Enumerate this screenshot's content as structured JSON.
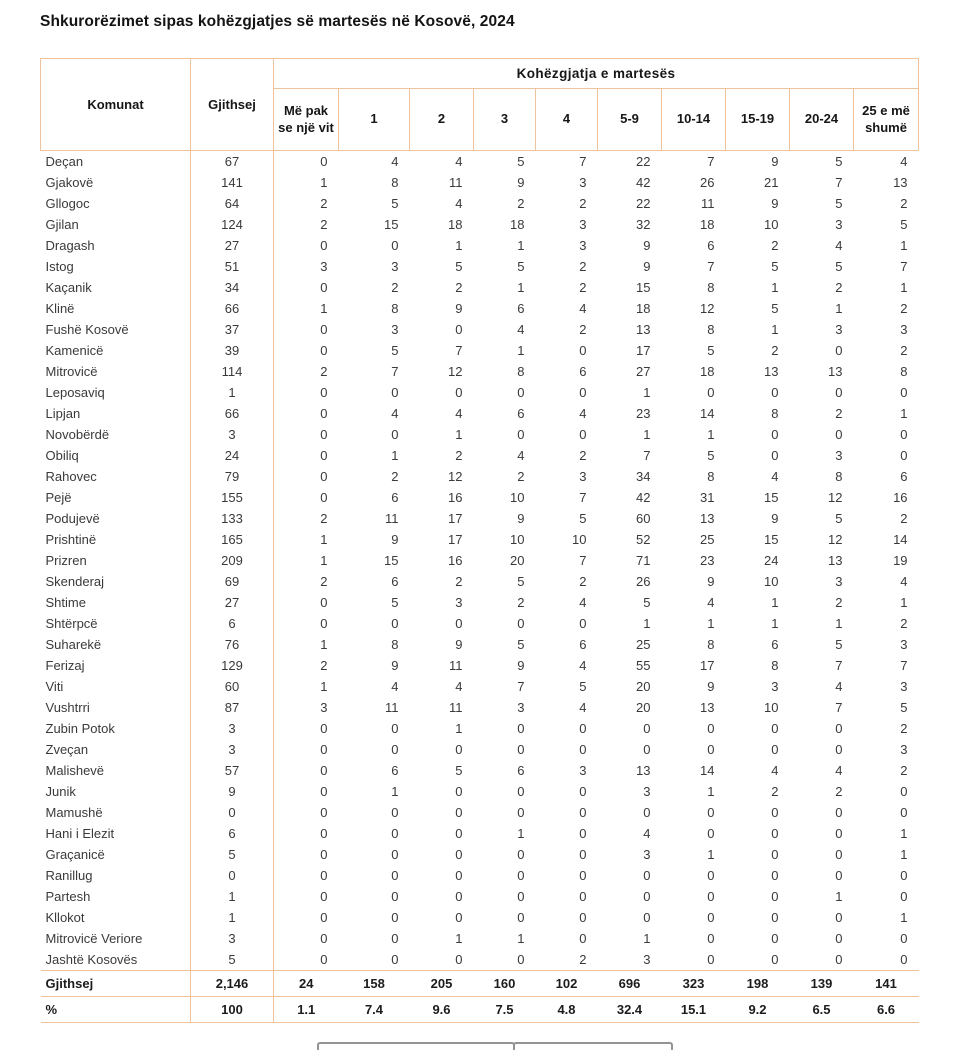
{
  "title": "Shkurorëzimet sipas kohëzgjatjes së martesës në Kosovë, 2024",
  "colors": {
    "table_border": "#f1c39c",
    "header_text": "#161616",
    "body_text": "#3a3a3a"
  },
  "table": {
    "col_komunat": "Komunat",
    "col_gjithsej": "Gjithsej",
    "group_header": "Kohëzgjatja e martesës",
    "duration_columns": [
      "Më pak se një vit",
      "1",
      "2",
      "3",
      "4",
      "5-9",
      "10-14",
      "15-19",
      "20-24",
      "25 e më shumë"
    ],
    "rows": [
      {
        "name": "Deçan",
        "total": "67",
        "values": [
          "0",
          "4",
          "4",
          "5",
          "7",
          "22",
          "7",
          "9",
          "5",
          "4"
        ]
      },
      {
        "name": "Gjakovë",
        "total": "141",
        "values": [
          "1",
          "8",
          "11",
          "9",
          "3",
          "42",
          "26",
          "21",
          "7",
          "13"
        ]
      },
      {
        "name": "Gllogoc",
        "total": "64",
        "values": [
          "2",
          "5",
          "4",
          "2",
          "2",
          "22",
          "11",
          "9",
          "5",
          "2"
        ]
      },
      {
        "name": "Gjilan",
        "total": "124",
        "values": [
          "2",
          "15",
          "18",
          "18",
          "3",
          "32",
          "18",
          "10",
          "3",
          "5"
        ]
      },
      {
        "name": "Dragash",
        "total": "27",
        "values": [
          "0",
          "0",
          "1",
          "1",
          "3",
          "9",
          "6",
          "2",
          "4",
          "1"
        ]
      },
      {
        "name": "Istog",
        "total": "51",
        "values": [
          "3",
          "3",
          "5",
          "5",
          "2",
          "9",
          "7",
          "5",
          "5",
          "7"
        ]
      },
      {
        "name": "Kaçanik",
        "total": "34",
        "values": [
          "0",
          "2",
          "2",
          "1",
          "2",
          "15",
          "8",
          "1",
          "2",
          "1"
        ]
      },
      {
        "name": "Klinë",
        "total": "66",
        "values": [
          "1",
          "8",
          "9",
          "6",
          "4",
          "18",
          "12",
          "5",
          "1",
          "2"
        ]
      },
      {
        "name": "Fushë Kosovë",
        "total": "37",
        "values": [
          "0",
          "3",
          "0",
          "4",
          "2",
          "13",
          "8",
          "1",
          "3",
          "3"
        ]
      },
      {
        "name": "Kamenicë",
        "total": "39",
        "values": [
          "0",
          "5",
          "7",
          "1",
          "0",
          "17",
          "5",
          "2",
          "0",
          "2"
        ]
      },
      {
        "name": "Mitrovicë",
        "total": "114",
        "values": [
          "2",
          "7",
          "12",
          "8",
          "6",
          "27",
          "18",
          "13",
          "13",
          "8"
        ]
      },
      {
        "name": "Leposaviq",
        "total": "1",
        "values": [
          "0",
          "0",
          "0",
          "0",
          "0",
          "1",
          "0",
          "0",
          "0",
          "0"
        ]
      },
      {
        "name": "Lipjan",
        "total": "66",
        "values": [
          "0",
          "4",
          "4",
          "6",
          "4",
          "23",
          "14",
          "8",
          "2",
          "1"
        ]
      },
      {
        "name": "Novobërdë",
        "total": "3",
        "values": [
          "0",
          "0",
          "1",
          "0",
          "0",
          "1",
          "1",
          "0",
          "0",
          "0"
        ]
      },
      {
        "name": "Obiliq",
        "total": "24",
        "values": [
          "0",
          "1",
          "2",
          "4",
          "2",
          "7",
          "5",
          "0",
          "3",
          "0"
        ]
      },
      {
        "name": "Rahovec",
        "total": "79",
        "values": [
          "0",
          "2",
          "12",
          "2",
          "3",
          "34",
          "8",
          "4",
          "8",
          "6"
        ]
      },
      {
        "name": "Pejë",
        "total": "155",
        "values": [
          "0",
          "6",
          "16",
          "10",
          "7",
          "42",
          "31",
          "15",
          "12",
          "16"
        ]
      },
      {
        "name": "Podujevë",
        "total": "133",
        "values": [
          "2",
          "11",
          "17",
          "9",
          "5",
          "60",
          "13",
          "9",
          "5",
          "2"
        ]
      },
      {
        "name": "Prishtinë",
        "total": "165",
        "values": [
          "1",
          "9",
          "17",
          "10",
          "10",
          "52",
          "25",
          "15",
          "12",
          "14"
        ]
      },
      {
        "name": "Prizren",
        "total": "209",
        "values": [
          "1",
          "15",
          "16",
          "20",
          "7",
          "71",
          "23",
          "24",
          "13",
          "19"
        ]
      },
      {
        "name": "Skenderaj",
        "total": "69",
        "values": [
          "2",
          "6",
          "2",
          "5",
          "2",
          "26",
          "9",
          "10",
          "3",
          "4"
        ]
      },
      {
        "name": "Shtime",
        "total": "27",
        "values": [
          "0",
          "5",
          "3",
          "2",
          "4",
          "5",
          "4",
          "1",
          "2",
          "1"
        ]
      },
      {
        "name": "Shtërpcë",
        "total": "6",
        "values": [
          "0",
          "0",
          "0",
          "0",
          "0",
          "1",
          "1",
          "1",
          "1",
          "2"
        ]
      },
      {
        "name": "Suharekë",
        "total": "76",
        "values": [
          "1",
          "8",
          "9",
          "5",
          "6",
          "25",
          "8",
          "6",
          "5",
          "3"
        ]
      },
      {
        "name": "Ferizaj",
        "total": "129",
        "values": [
          "2",
          "9",
          "11",
          "9",
          "4",
          "55",
          "17",
          "8",
          "7",
          "7"
        ]
      },
      {
        "name": "Viti",
        "total": "60",
        "values": [
          "1",
          "4",
          "4",
          "7",
          "5",
          "20",
          "9",
          "3",
          "4",
          "3"
        ]
      },
      {
        "name": "Vushtrri",
        "total": "87",
        "values": [
          "3",
          "11",
          "11",
          "3",
          "4",
          "20",
          "13",
          "10",
          "7",
          "5"
        ]
      },
      {
        "name": "Zubin Potok",
        "total": "3",
        "values": [
          "0",
          "0",
          "1",
          "0",
          "0",
          "0",
          "0",
          "0",
          "0",
          "2"
        ]
      },
      {
        "name": "Zveçan",
        "total": "3",
        "values": [
          "0",
          "0",
          "0",
          "0",
          "0",
          "0",
          "0",
          "0",
          "0",
          "3"
        ]
      },
      {
        "name": "Malishevë",
        "total": "57",
        "values": [
          "0",
          "6",
          "5",
          "6",
          "3",
          "13",
          "14",
          "4",
          "4",
          "2"
        ]
      },
      {
        "name": "Junik",
        "total": "9",
        "values": [
          "0",
          "1",
          "0",
          "0",
          "0",
          "3",
          "1",
          "2",
          "2",
          "0"
        ]
      },
      {
        "name": "Mamushë",
        "total": "0",
        "values": [
          "0",
          "0",
          "0",
          "0",
          "0",
          "0",
          "0",
          "0",
          "0",
          "0"
        ]
      },
      {
        "name": "Hani i Elezit",
        "total": "6",
        "values": [
          "0",
          "0",
          "0",
          "1",
          "0",
          "4",
          "0",
          "0",
          "0",
          "1"
        ]
      },
      {
        "name": "Graçanicë",
        "total": "5",
        "values": [
          "0",
          "0",
          "0",
          "0",
          "0",
          "3",
          "1",
          "0",
          "0",
          "1"
        ]
      },
      {
        "name": "Ranillug",
        "total": "0",
        "values": [
          "0",
          "0",
          "0",
          "0",
          "0",
          "0",
          "0",
          "0",
          "0",
          "0"
        ]
      },
      {
        "name": "Partesh",
        "total": "1",
        "values": [
          "0",
          "0",
          "0",
          "0",
          "0",
          "0",
          "0",
          "0",
          "1",
          "0"
        ]
      },
      {
        "name": "Kllokot",
        "total": "1",
        "values": [
          "0",
          "0",
          "0",
          "0",
          "0",
          "0",
          "0",
          "0",
          "0",
          "1"
        ]
      },
      {
        "name": "Mitrovicë Veriore",
        "total": "3",
        "values": [
          "0",
          "0",
          "1",
          "1",
          "0",
          "1",
          "0",
          "0",
          "0",
          "0"
        ]
      },
      {
        "name": "Jashtë Kosovës",
        "total": "5",
        "values": [
          "0",
          "0",
          "0",
          "0",
          "2",
          "3",
          "0",
          "0",
          "0",
          "0"
        ]
      }
    ],
    "totals_row": {
      "label": "Gjithsej",
      "total": "2,146",
      "values": [
        "24",
        "158",
        "205",
        "160",
        "102",
        "696",
        "323",
        "198",
        "139",
        "141"
      ]
    },
    "percent_row": {
      "label": "%",
      "total": "100",
      "values": [
        "1.1",
        "7.4",
        "9.6",
        "7.5",
        "4.8",
        "32.4",
        "15.1",
        "9.2",
        "6.5",
        "6.6"
      ]
    }
  }
}
